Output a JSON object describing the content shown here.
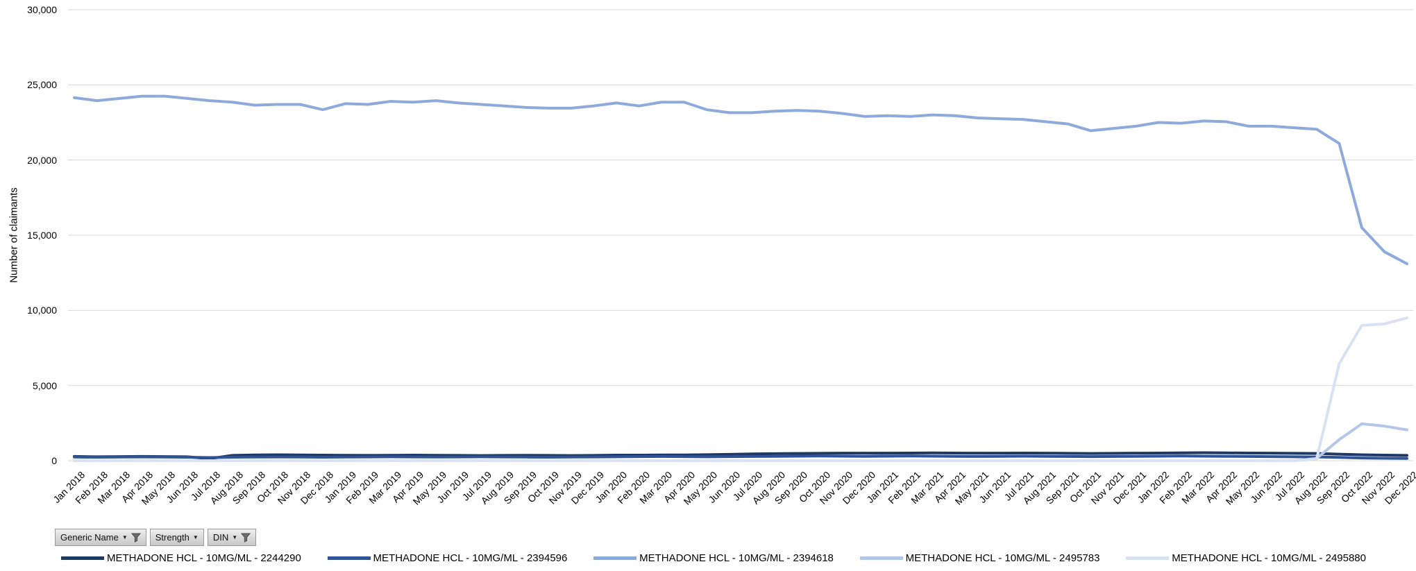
{
  "chart_data": {
    "type": "line",
    "title": "",
    "ylabel": "Number of claimants",
    "xlabel": "",
    "ylim": [
      0,
      30000
    ],
    "yticks": [
      0,
      5000,
      10000,
      15000,
      20000,
      25000,
      30000
    ],
    "ytick_labels": [
      "0",
      "5,000",
      "10,000",
      "15,000",
      "20,000",
      "25,000",
      "30,000"
    ],
    "grid": "horizontal",
    "gridline_color": "#D9D9D9",
    "legend_position": "bottom",
    "x": [
      "Jan 2018",
      "Feb 2018",
      "Mar 2018",
      "Apr 2018",
      "May 2018",
      "Jun 2018",
      "Jul 2018",
      "Aug 2018",
      "Sep 2018",
      "Oct 2018",
      "Nov 2018",
      "Dec 2018",
      "Jan 2019",
      "Feb 2019",
      "Mar 2019",
      "Apr 2019",
      "May 2019",
      "Jun 2019",
      "Jul 2019",
      "Aug 2019",
      "Sep 2019",
      "Oct 2019",
      "Nov 2019",
      "Dec 2019",
      "Jan 2020",
      "Feb 2020",
      "Mar 2020",
      "Apr 2020",
      "May 2020",
      "Jun 2020",
      "Jul 2020",
      "Aug 2020",
      "Sep 2020",
      "Oct 2020",
      "Nov 2020",
      "Dec 2020",
      "Jan 2021",
      "Feb 2021",
      "Mar 2021",
      "Apr 2021",
      "May 2021",
      "Jun 2021",
      "Jul 2021",
      "Aug 2021",
      "Sep 2021",
      "Oct 2021",
      "Nov 2021",
      "Dec 2021",
      "Jan 2022",
      "Feb 2022",
      "Mar 2022",
      "Apr 2022",
      "May 2022",
      "Jun 2022",
      "Jul 2022",
      "Aug 2022",
      "Sep 2022",
      "Oct 2022",
      "Nov 2022",
      "Dec 2022"
    ],
    "series": [
      {
        "name": "METHADONE HCL - 10MG/ML - 2244290",
        "color": "#1F3864",
        "values": [
          280,
          260,
          270,
          280,
          270,
          260,
          140,
          350,
          380,
          390,
          380,
          370,
          360,
          350,
          360,
          370,
          360,
          350,
          340,
          350,
          360,
          350,
          340,
          350,
          370,
          370,
          380,
          380,
          400,
          420,
          450,
          470,
          480,
          490,
          500,
          500,
          500,
          510,
          520,
          510,
          500,
          500,
          510,
          500,
          490,
          480,
          490,
          500,
          510,
          520,
          530,
          520,
          510,
          500,
          490,
          480,
          430,
          390,
          370,
          350
        ]
      },
      {
        "name": "METHADONE HCL - 10MG/ML - 2394596",
        "color": "#2F5496",
        "values": [
          240,
          230,
          240,
          250,
          240,
          230,
          210,
          230,
          240,
          250,
          240,
          230,
          240,
          250,
          260,
          250,
          240,
          250,
          260,
          250,
          240,
          230,
          240,
          250,
          260,
          270,
          280,
          270,
          260,
          270,
          280,
          290,
          300,
          310,
          300,
          290,
          300,
          310,
          300,
          290,
          280,
          290,
          300,
          290,
          280,
          270,
          280,
          290,
          300,
          310,
          300,
          290,
          280,
          270,
          260,
          250,
          220,
          180,
          160,
          150
        ]
      },
      {
        "name": "METHADONE HCL - 10MG/ML - 2394618",
        "color": "#8EAADB",
        "values": [
          24150,
          23950,
          24100,
          24250,
          24250,
          24100,
          23950,
          23850,
          23650,
          23700,
          23700,
          23350,
          23750,
          23700,
          23900,
          23850,
          23950,
          23800,
          23700,
          23600,
          23500,
          23450,
          23450,
          23600,
          23800,
          23600,
          23850,
          23850,
          23350,
          23150,
          23150,
          23250,
          23300,
          23250,
          23100,
          22900,
          22950,
          22900,
          23000,
          22950,
          22800,
          22750,
          22700,
          22550,
          22400,
          21950,
          22100,
          22250,
          22500,
          22450,
          22600,
          22550,
          22250,
          22250,
          22150,
          22050,
          21100,
          15500,
          13900,
          13100
        ]
      },
      {
        "name": "METHADONE HCL - 10MG/ML - 2495783",
        "color": "#B4C6E7",
        "values": [
          0,
          0,
          0,
          0,
          0,
          0,
          0,
          0,
          0,
          0,
          0,
          0,
          0,
          0,
          0,
          0,
          0,
          0,
          0,
          0,
          0,
          0,
          0,
          0,
          0,
          0,
          0,
          0,
          0,
          0,
          0,
          0,
          0,
          0,
          0,
          0,
          0,
          0,
          0,
          0,
          0,
          0,
          0,
          0,
          0,
          0,
          0,
          0,
          0,
          0,
          0,
          0,
          0,
          0,
          0,
          150,
          1400,
          2450,
          2300,
          2050
        ]
      },
      {
        "name": "METHADONE HCL - 10MG/ML - 2495880",
        "color": "#D9E2F3",
        "values": [
          0,
          0,
          0,
          0,
          0,
          0,
          0,
          0,
          0,
          0,
          0,
          0,
          0,
          0,
          0,
          0,
          0,
          0,
          0,
          0,
          0,
          0,
          0,
          0,
          0,
          0,
          0,
          0,
          0,
          0,
          0,
          0,
          0,
          0,
          0,
          0,
          0,
          0,
          0,
          0,
          0,
          0,
          0,
          0,
          0,
          0,
          0,
          0,
          0,
          0,
          0,
          0,
          0,
          0,
          0,
          100,
          6450,
          9000,
          9100,
          9500
        ]
      }
    ]
  },
  "filters": {
    "buttons": [
      {
        "label": "Generic Name",
        "has_caret": true,
        "has_filter_icon": true
      },
      {
        "label": "Strength",
        "has_caret": true,
        "has_filter_icon": false
      },
      {
        "label": "DIN",
        "has_caret": true,
        "has_filter_icon": true
      }
    ]
  },
  "colors": {
    "background": "#FFFFFF",
    "gridline": "#D9D9D9",
    "text": "#000000",
    "filter_icon": "#6E6E6E"
  }
}
